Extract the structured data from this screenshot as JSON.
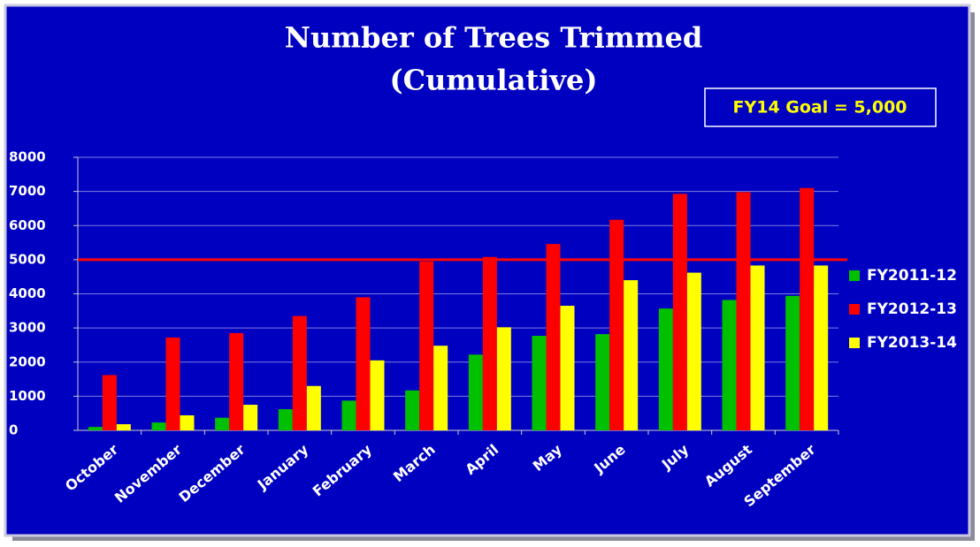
{
  "chart_data": {
    "type": "bar",
    "title": "Number of Trees Trimmed",
    "subtitle": "(Cumulative)",
    "categories": [
      "October",
      "November",
      "December",
      "January",
      "February",
      "March",
      "April",
      "May",
      "June",
      "July",
      "August",
      "September"
    ],
    "series": [
      {
        "name": "FY2011-12",
        "color": "#00c000",
        "values": [
          100,
          230,
          370,
          620,
          870,
          1170,
          2220,
          2770,
          2820,
          3570,
          3820,
          3940
        ]
      },
      {
        "name": "FY2012-13",
        "color": "#ff0000",
        "values": [
          1620,
          2720,
          2850,
          3350,
          3900,
          4950,
          5080,
          5460,
          6170,
          6930,
          6980,
          7100
        ]
      },
      {
        "name": "FY2013-14",
        "color": "#ffff00",
        "values": [
          180,
          440,
          750,
          1300,
          2050,
          2480,
          3020,
          3650,
          4400,
          4620,
          4830,
          4830
        ]
      }
    ],
    "ylim": [
      0,
      8000
    ],
    "yticks": [
      0,
      1000,
      2000,
      3000,
      4000,
      5000,
      6000,
      7000,
      8000
    ],
    "grid": true,
    "goal": 5000,
    "goal_color": "#ff0000",
    "goal_label": "FY14 Goal = 5,000",
    "legend": "right"
  }
}
